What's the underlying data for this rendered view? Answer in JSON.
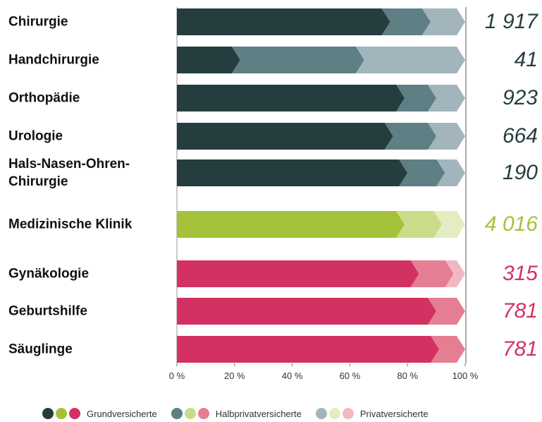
{
  "chart_data": {
    "type": "stacked-bar-100",
    "categories": [
      "Chirurgie",
      "Handchirurgie",
      "Orthopädie",
      "Urologie",
      "Hals-Nasen-Ohren-Chirurgie",
      "Medizinische Klinik",
      "Gynäkologie",
      "Geburtshilfe",
      "Säuglinge"
    ],
    "series": [
      {
        "name": "Grundversicherte",
        "colors": [
          "#263d3f",
          "#263d3f",
          "#263d3f",
          "#263d3f",
          "#263d3f",
          "#a3c23a",
          "#d43163",
          "#d43163",
          "#d43163"
        ],
        "values": [
          74,
          22,
          79,
          75,
          80,
          79,
          84,
          90,
          91
        ]
      },
      {
        "name": "Halbprivatversicherte",
        "colors": [
          "#5e7f84",
          "#5e7f84",
          "#5e7f84",
          "#5e7f84",
          "#5e7f84",
          "#cadc8a",
          "#e57e92",
          "#e57e92",
          "#e57e92"
        ],
        "values": [
          14,
          43,
          11,
          15,
          13,
          13,
          12,
          10,
          9
        ]
      },
      {
        "name": "Privatversicherte",
        "colors": [
          "#a2b5bd",
          "#a2b5bd",
          "#a2b5bd",
          "#a2b5bd",
          "#a2b5bd",
          "#e4edc1",
          "#f1b8c4",
          "#f1b8c4",
          "#f1b8c4"
        ],
        "values": [
          12,
          35,
          10,
          10,
          7,
          8,
          4,
          0,
          0
        ]
      }
    ],
    "totals": [
      1917,
      41,
      923,
      664,
      190,
      4016,
      315,
      781,
      781
    ],
    "total_labels": [
      "1 917",
      "41",
      "923",
      "664",
      "190",
      "4 016",
      "315",
      "781",
      "781"
    ],
    "xlim": [
      0,
      100
    ],
    "xticks": [
      {
        "value": 0,
        "label": "0 %"
      },
      {
        "value": 20,
        "label": "20 %"
      },
      {
        "value": 40,
        "label": "40 %"
      },
      {
        "value": 60,
        "label": "60 %"
      },
      {
        "value": 80,
        "label": "80 %"
      },
      {
        "value": 100,
        "label": "100 %"
      }
    ]
  }
}
